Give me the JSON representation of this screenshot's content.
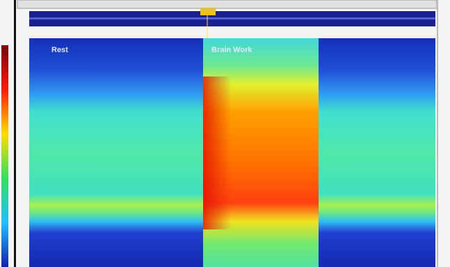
{
  "panels": [
    {
      "label": "Rest"
    },
    {
      "label": "Brain Work"
    }
  ]
}
